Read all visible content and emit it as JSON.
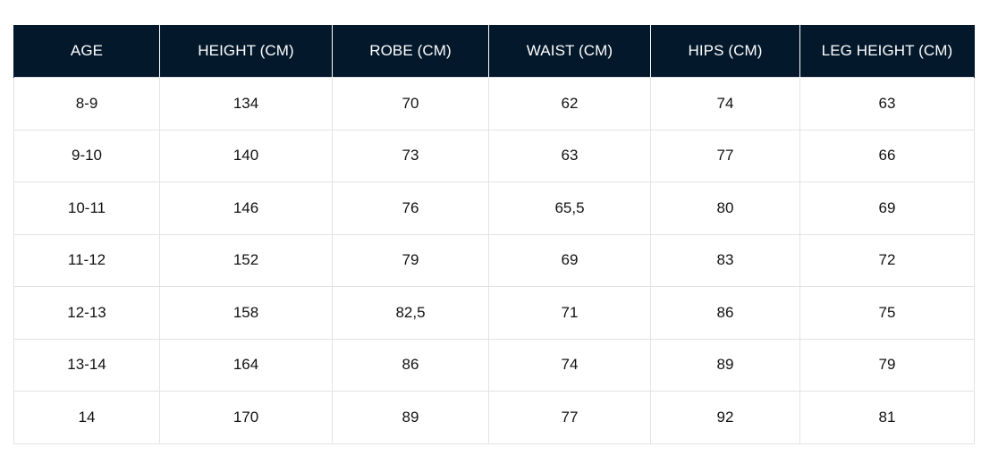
{
  "table": {
    "headers": [
      "AGE",
      "HEIGHT (CM)",
      "ROBE (CM)",
      "WAIST (CM)",
      "HIPS (CM)",
      "LEG HEIGHT (CM)"
    ],
    "rows": [
      [
        "8-9",
        "134",
        "70",
        "62",
        "74",
        "63"
      ],
      [
        "9-10",
        "140",
        "73",
        "63",
        "77",
        "66"
      ],
      [
        "10-11",
        "146",
        "76",
        "65,5",
        "80",
        "69"
      ],
      [
        "11-12",
        "152",
        "79",
        "69",
        "83",
        "72"
      ],
      [
        "12-13",
        "158",
        "82,5",
        "71",
        "86",
        "75"
      ],
      [
        "13-14",
        "164",
        "86",
        "74",
        "89",
        "79"
      ],
      [
        "14",
        "170",
        "89",
        "77",
        "92",
        "81"
      ]
    ]
  },
  "colors": {
    "header_background": "#03182b",
    "header_text": "#ffffff",
    "cell_border": "#e3e3e3"
  }
}
